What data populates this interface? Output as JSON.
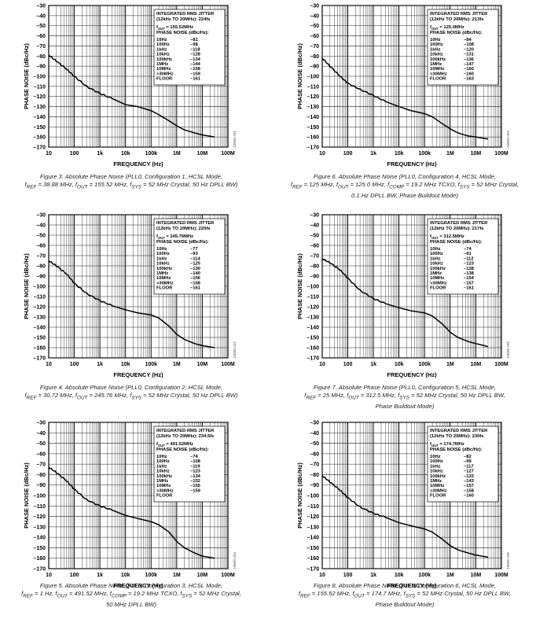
{
  "axes": {
    "xlabel": "FREQUENCY (Hz)",
    "ylabel": "PHASE NOISE (dBc/Hz)",
    "x_ticks": [
      "10",
      "100",
      "1k",
      "10k",
      "100k",
      "1M",
      "10M",
      "100M"
    ],
    "y_ticks": [
      "–30",
      "–40",
      "–50",
      "–60",
      "–70",
      "–80",
      "–90",
      "–100",
      "–110",
      "–120",
      "–130",
      "–140",
      "–150",
      "–160",
      "–170"
    ],
    "legend_col1": [
      "10Hz",
      "100Hz",
      "1kHz",
      "10kHz",
      "100kHz",
      "1MHz",
      "10MHz",
      ">30MHz",
      "FLOOR"
    ]
  },
  "figures": [
    {
      "caption_lines": [
        "Figure 3. Absolute Phase Noise (PLL0, Configuration 1, HCSL Mode,",
        "f<sub>REF</sub> = 38.88 MHz, f<sub>OUT</sub> = 155.52 MHz, f<sub>SYS</sub> = 52 MHz Crystal, 50 Hz DPLL BW)"
      ],
      "legend": {
        "title1": "INTEGRATED RMS JITTER",
        "title2": "(12kHz TO 20MHz): 224fs",
        "fout_label": "f",
        "fout_sub": "OUT",
        "fout_value": " = 155.52MHz",
        "pn_header": "PHASE NOISE (dBc/Hz):",
        "values": [
          "–81",
          "–98",
          "–118",
          "–128",
          "–134",
          "–144",
          "–158",
          "–159",
          "–161"
        ]
      },
      "fig_id": "15658-201",
      "chart_data": {
        "type": "line",
        "title": "",
        "xlabel": "FREQUENCY (Hz)",
        "ylabel": "PHASE NOISE (dBc/Hz)",
        "x_scale": "log",
        "xlim": [
          10,
          100000000
        ],
        "ylim": [
          -170,
          -30
        ],
        "grid": true,
        "legend_position": "top-right",
        "x": [
          10,
          20,
          50,
          100,
          300,
          1000,
          3000,
          10000,
          30000,
          100000,
          200000,
          500000,
          1000000,
          2000000,
          5000000,
          10000000,
          30000000
        ],
        "y": [
          -79,
          -85,
          -93,
          -100,
          -110,
          -117,
          -122,
          -128,
          -130,
          -134,
          -138,
          -144,
          -149,
          -153,
          -156,
          -158,
          -160
        ]
      }
    },
    {
      "caption_lines": [
        "Figure 6. Absolute Phase Noise (PLL0, Configuration 4, HCSL Mode,",
        "f<sub>REF</sub> = 125 MHz, f<sub>OUT</sub> = 125.0 MHz, f<sub>COMP</sub> = 19.2 MHz TCXO, f<sub>SYS</sub> = 52 MHz Crystal,",
        "0.1 Hz DPLL BW, Phase Buildout Mode)"
      ],
      "legend": {
        "title1": "INTEGRATED RMS JITTER",
        "title2": "(12kHz TO 20MHz): 213fs",
        "fout_label": "f",
        "fout_sub": "OUT",
        "fout_value": " = 125.0MHz",
        "pn_header": "PHASE NOISE (dBc/Hz):",
        "values": [
          "–84",
          "–108",
          "–120",
          "–131",
          "–136",
          "–147",
          "–160",
          "–160",
          "–163"
        ]
      },
      "fig_id": "15658-204",
      "chart_data": {
        "type": "line",
        "title": "",
        "xlabel": "FREQUENCY (Hz)",
        "ylabel": "PHASE NOISE (dBc/Hz)",
        "x_scale": "log",
        "xlim": [
          10,
          100000000
        ],
        "ylim": [
          -170,
          -30
        ],
        "grid": true,
        "legend_position": "top-right",
        "x": [
          10,
          20,
          50,
          100,
          300,
          1000,
          3000,
          10000,
          30000,
          100000,
          200000,
          500000,
          1000000,
          2000000,
          5000000,
          10000000,
          30000000
        ],
        "y": [
          -82,
          -90,
          -100,
          -107,
          -113,
          -119,
          -125,
          -130,
          -134,
          -137,
          -140,
          -147,
          -152,
          -156,
          -159,
          -160,
          -162
        ]
      }
    },
    {
      "caption_lines": [
        "Figure 4. Absolute Phase Noise (PLL0, Configuration 2, HCSL Mode,",
        "f<sub>REF</sub> = 30.72 MHz, f<sub>OUT</sub> = 245.76 MHz, f<sub>SYS</sub> = 52 MHz Crystal, 50 Hz DPLL BW)"
      ],
      "legend": {
        "title1": "INTEGRATED RMS JITTER",
        "title2": "(12kHz TO 20MHz): 220fs",
        "fout_label": "f",
        "fout_sub": "OUT",
        "fout_value": " = 245.76MHz",
        "pn_header": "PHASE NOISE (dBc/Hz):",
        "values": [
          "–77",
          "–93",
          "–114",
          "–125",
          "–130",
          "–140",
          "–156",
          "–158",
          "–161"
        ]
      },
      "fig_id": "15658-202",
      "chart_data": {
        "type": "line",
        "title": "",
        "xlabel": "FREQUENCY (Hz)",
        "ylabel": "PHASE NOISE (dBc/Hz)",
        "x_scale": "log",
        "xlim": [
          10,
          100000000
        ],
        "ylim": [
          -170,
          -30
        ],
        "grid": true,
        "legend_position": "top-right",
        "x": [
          10,
          20,
          50,
          100,
          300,
          1000,
          3000,
          10000,
          30000,
          100000,
          200000,
          500000,
          1000000,
          2000000,
          5000000,
          10000000,
          30000000
        ],
        "y": [
          -75,
          -80,
          -88,
          -97,
          -107,
          -114,
          -119,
          -123,
          -126,
          -128,
          -131,
          -139,
          -147,
          -152,
          -156,
          -158,
          -160
        ]
      }
    },
    {
      "caption_lines": [
        "Figure 7. Absolute Phase Noise (PLL0, Configuration 5, HCSL Mode,",
        "f<sub>REF</sub> = 25 MHz, f<sub>OUT</sub> = 312.5 MHz, f<sub>SYS</sub> = 52 MHz Crystal, 50 Hz DPLL BW,",
        "Phase Buildout Mode)"
      ],
      "legend": {
        "title1": "INTEGRATED RMS JITTER",
        "title2": "(12kHz TO 20MHz): 217fs",
        "fout_label": "f",
        "fout_sub": "OUT",
        "fout_value": " = 312.5MHz",
        "pn_header": "PHASE NOISE (dBc/Hz):",
        "values": [
          "–74",
          "–91",
          "–112",
          "–123",
          "–128",
          "–138",
          "–154",
          "–157",
          "–161"
        ]
      },
      "fig_id": "15658-205",
      "chart_data": {
        "type": "line",
        "title": "",
        "xlabel": "FREQUENCY (Hz)",
        "ylabel": "PHASE NOISE (dBc/Hz)",
        "x_scale": "log",
        "xlim": [
          10,
          100000000
        ],
        "ylim": [
          -170,
          -30
        ],
        "grid": true,
        "legend_position": "top-right",
        "x": [
          10,
          20,
          50,
          100,
          300,
          1000,
          3000,
          10000,
          30000,
          100000,
          200000,
          500000,
          1000000,
          2000000,
          5000000,
          10000000,
          30000000
        ],
        "y": [
          -73,
          -77,
          -84,
          -92,
          -104,
          -112,
          -117,
          -121,
          -124,
          -126,
          -129,
          -137,
          -145,
          -150,
          -154,
          -156,
          -159
        ]
      }
    },
    {
      "caption_lines": [
        "Figure 5. Absolute Phase Noise (PLL0, Configuration 3, HCSL Mode,",
        "f<sub>REF</sub> = 1 Hz, f<sub>OUT</sub> = 491.52 MHz, f<sub>COMP</sub> = 19.2 MHz TCXO, f<sub>SYS</sub> = 52 MHz Crystal,",
        "50 MHz DPLL BW)"
      ],
      "legend": {
        "title1": "INTEGRATED RMS JITTER",
        "title2": "(12kHz TO 20MHz): 234.5fs",
        "fout_label": "f",
        "fout_sub": "OUT",
        "fout_value": " = 491.52MHz",
        "pn_header": "PHASE NOISE (dBc/Hz):",
        "values": [
          "–74",
          "–108",
          "–119",
          "–123",
          "–134",
          "–152",
          "–155",
          "–159",
          ""
        ]
      },
      "fig_id": "15658-203",
      "chart_data": {
        "type": "line",
        "title": "",
        "xlabel": "FREQUENCY (Hz)",
        "ylabel": "PHASE NOISE (dBc/Hz)",
        "x_scale": "log",
        "xlim": [
          10,
          100000000
        ],
        "ylim": [
          -170,
          -30
        ],
        "grid": true,
        "legend_position": "top-right",
        "x": [
          10,
          20,
          50,
          100,
          300,
          1000,
          3000,
          10000,
          30000,
          100000,
          200000,
          500000,
          1000000,
          2000000,
          5000000,
          10000000,
          30000000
        ],
        "y": [
          -73,
          -78,
          -86,
          -94,
          -104,
          -110,
          -114,
          -119,
          -122,
          -125,
          -128,
          -135,
          -144,
          -150,
          -155,
          -158,
          -160
        ]
      }
    },
    {
      "caption_lines": [
        "Figure 8. Absolute Phase Noise (PLL0, Configuration 6, HCSL Mode,",
        "f<sub>REF</sub> = 155.52 MHz, f<sub>OUT</sub> = 174.7 MHz, f<sub>SYS</sub> = 52 MHz Crystal, 50 Hz DPLL BW,",
        "Phase Buildout Mode)"
      ],
      "legend": {
        "title1": "INTEGRATED RMS JITTER",
        "title2": "(12kHz TO 20MHz): 230fs",
        "fout_label": "f",
        "fout_sub": "OUT",
        "fout_value": " = 174.7MHz",
        "pn_header": "PHASE NOISE (dBc/Hz):",
        "values": [
          "–82",
          "–99",
          "–117",
          "–127",
          "–133",
          "–143",
          "–157",
          "–158",
          "–160"
        ]
      },
      "fig_id": "15658-206",
      "chart_data": {
        "type": "line",
        "title": "",
        "xlabel": "FREQUENCY (Hz)",
        "ylabel": "PHASE NOISE (dBc/Hz)",
        "x_scale": "log",
        "xlim": [
          10,
          100000000
        ],
        "ylim": [
          -170,
          -30
        ],
        "grid": true,
        "legend_position": "top-right",
        "x": [
          10,
          20,
          50,
          100,
          300,
          1000,
          3000,
          10000,
          30000,
          100000,
          200000,
          500000,
          1000000,
          2000000,
          5000000,
          10000000,
          30000000
        ],
        "y": [
          -81,
          -87,
          -95,
          -102,
          -111,
          -117,
          -121,
          -126,
          -129,
          -132,
          -135,
          -142,
          -148,
          -152,
          -155,
          -157,
          -159
        ]
      }
    }
  ]
}
